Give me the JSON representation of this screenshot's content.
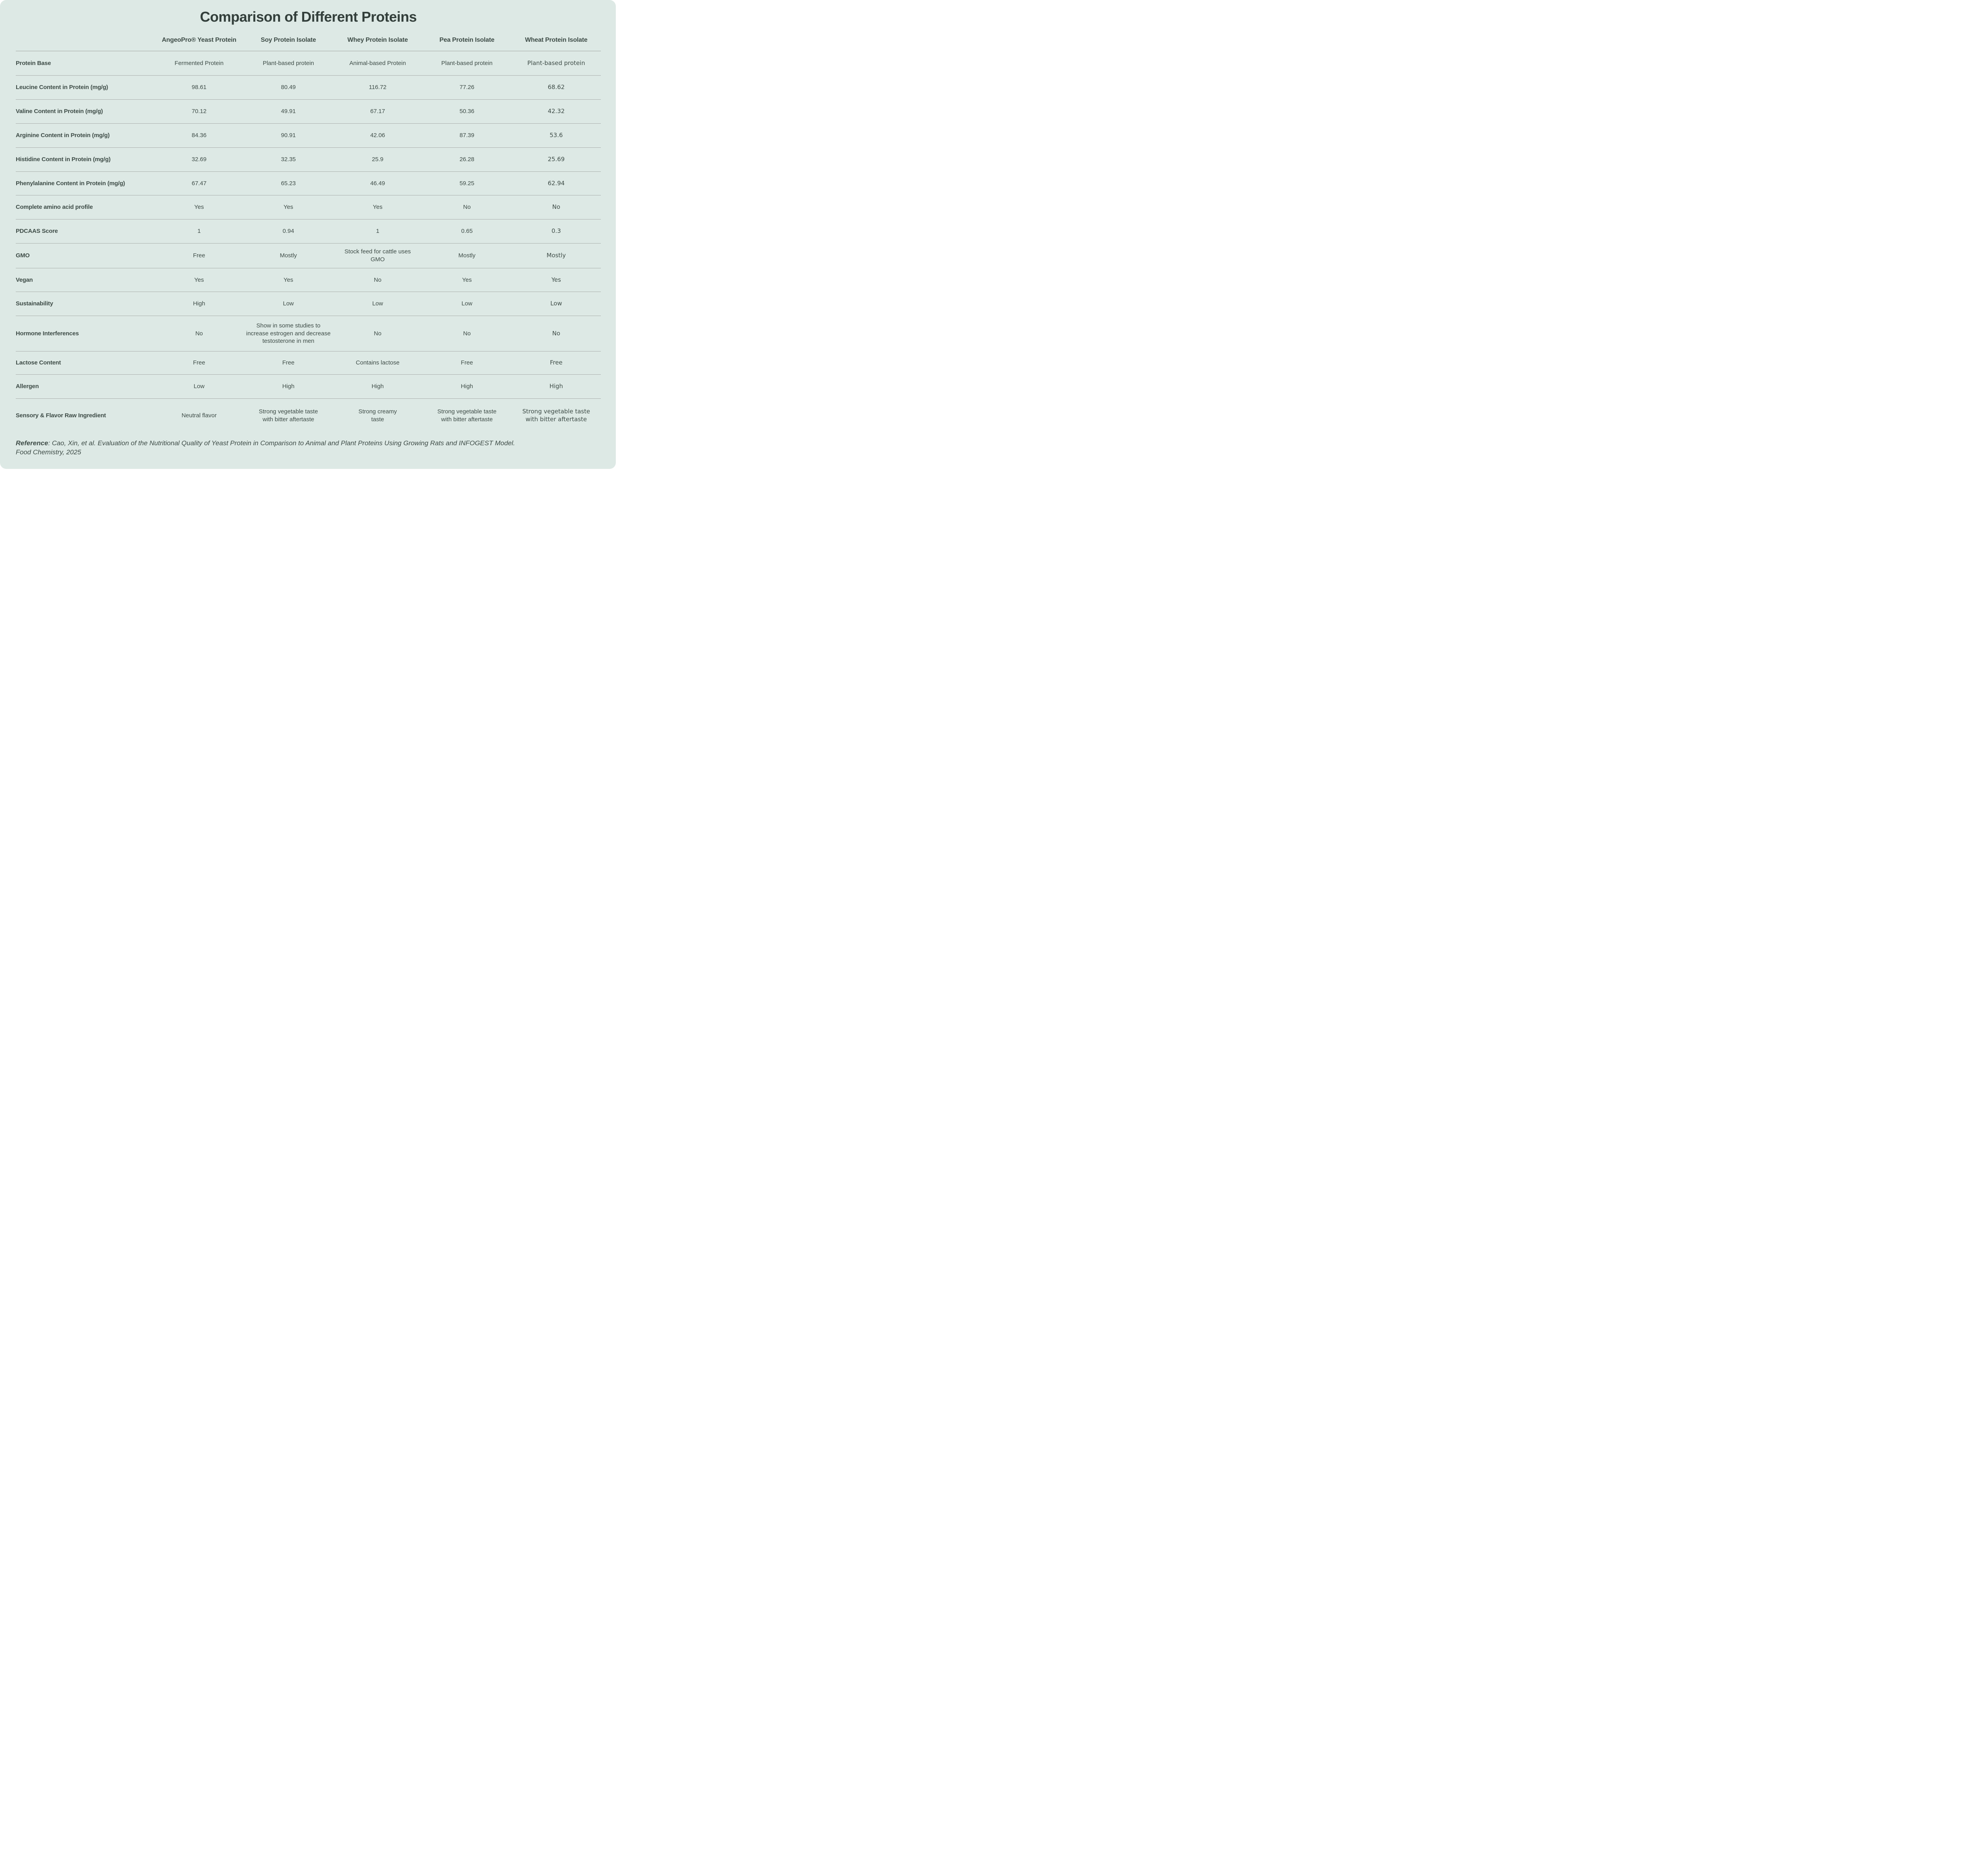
{
  "title": "Comparison of Different Proteins",
  "columns": [
    "AngeoPro® Yeast Protein",
    "Soy Protein Isolate",
    "Whey Protein Isolate",
    "Pea Protein Isolate",
    "Wheat Protein Isolate"
  ],
  "rows": [
    {
      "label": "Protein Base",
      "values": [
        "Fermented Protein",
        "Plant-based protein",
        "Animal-based Protein",
        "Plant-based protein",
        "Plant-based protein"
      ]
    },
    {
      "label": "Leucine Content in Protein (mg/g)",
      "values": [
        "98.61",
        "80.49",
        "116.72",
        "77.26",
        "68.62"
      ]
    },
    {
      "label": "Valine Content in Protein (mg/g)",
      "values": [
        "70.12",
        "49.91",
        "67.17",
        "50.36",
        "42.32"
      ]
    },
    {
      "label": "Arginine Content in Protein (mg/g)",
      "values": [
        "84.36",
        "90.91",
        "42.06",
        "87.39",
        "53.6"
      ]
    },
    {
      "label": "Histidine Content in Protein (mg/g)",
      "values": [
        "32.69",
        "32.35",
        "25.9",
        "26.28",
        "25.69"
      ]
    },
    {
      "label": "Phenylalanine Content in Protein (mg/g)",
      "values": [
        "67.47",
        "65.23",
        "46.49",
        "59.25",
        "62.94"
      ]
    },
    {
      "label": "Complete amino acid profile",
      "values": [
        "Yes",
        "Yes",
        "Yes",
        "No",
        "No"
      ]
    },
    {
      "label": "PDCAAS Score",
      "values": [
        "1",
        "0.94",
        "1",
        "0.65",
        "0.3"
      ]
    },
    {
      "label": "GMO",
      "values": [
        "Free",
        "Mostly",
        "Stock feed for cattle uses GMO",
        "Mostly",
        "Mostly"
      ]
    },
    {
      "label": "Vegan",
      "values": [
        "Yes",
        "Yes",
        "No",
        "Yes",
        "Yes"
      ]
    },
    {
      "label": "Sustainability",
      "values": [
        "High",
        "Low",
        "Low",
        "Low",
        "Low"
      ]
    },
    {
      "label": "Hormone Interferences",
      "values": [
        "No",
        "Show in some studies to increase estrogen and decrease testosterone in men",
        "No",
        "No",
        "No"
      ]
    },
    {
      "label": "Lactose Content",
      "values": [
        "Free",
        "Free",
        "Contains lactose",
        "Free",
        "Free"
      ]
    },
    {
      "label": "Allergen",
      "values": [
        "Low",
        "High",
        "High",
        "High",
        "High"
      ]
    },
    {
      "label": "Sensory & Flavor Raw Ingredient",
      "values": [
        "Neutral flavor",
        "Strong vegetable taste with bitter aftertaste",
        "Strong creamy taste",
        "Strong vegetable taste with bitter aftertaste",
        "Strong vegetable taste with bitter aftertaste"
      ]
    }
  ],
  "reference": {
    "label": "Reference",
    "colon": ":",
    "line1": "Cao, Xin, et al. Evaluation of the Nutritional Quality of Yeast Protein in Comparison to Animal and Plant Proteins Using Growing Rats and INFOGEST Model.",
    "line2": "Food Chemistry, 2025"
  },
  "colors": {
    "card_background": "#dde9e5",
    "text": "#3e4c47",
    "title": "#333f3b",
    "divider": "#a9afac"
  }
}
